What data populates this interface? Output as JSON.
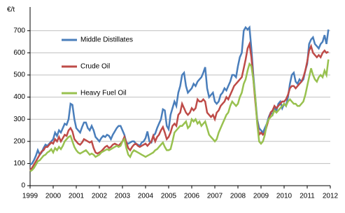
{
  "chart_data": {
    "type": "line",
    "y_label": "€/t",
    "x": [
      1999,
      1999.083,
      1999.167,
      1999.25,
      1999.333,
      1999.417,
      1999.5,
      1999.583,
      1999.667,
      1999.75,
      1999.833,
      1999.917,
      2000,
      2000.083,
      2000.167,
      2000.25,
      2000.333,
      2000.417,
      2000.5,
      2000.583,
      2000.667,
      2000.75,
      2000.833,
      2000.917,
      2001,
      2001.083,
      2001.167,
      2001.25,
      2001.333,
      2001.417,
      2001.5,
      2001.583,
      2001.667,
      2001.75,
      2001.833,
      2001.917,
      2002,
      2002.083,
      2002.167,
      2002.25,
      2002.333,
      2002.417,
      2002.5,
      2002.583,
      2002.667,
      2002.75,
      2002.833,
      2002.917,
      2003,
      2003.083,
      2003.167,
      2003.25,
      2003.333,
      2003.417,
      2003.5,
      2003.583,
      2003.667,
      2003.75,
      2003.833,
      2003.917,
      2004,
      2004.083,
      2004.167,
      2004.25,
      2004.333,
      2004.417,
      2004.5,
      2004.583,
      2004.667,
      2004.75,
      2004.833,
      2004.917,
      2005,
      2005.083,
      2005.167,
      2005.25,
      2005.333,
      2005.417,
      2005.5,
      2005.583,
      2005.667,
      2005.75,
      2005.833,
      2005.917,
      2006,
      2006.083,
      2006.167,
      2006.25,
      2006.333,
      2006.417,
      2006.5,
      2006.583,
      2006.667,
      2006.75,
      2006.833,
      2006.917,
      2007,
      2007.083,
      2007.167,
      2007.25,
      2007.333,
      2007.417,
      2007.5,
      2007.583,
      2007.667,
      2007.75,
      2007.833,
      2007.917,
      2008,
      2008.083,
      2008.167,
      2008.25,
      2008.333,
      2008.417,
      2008.5,
      2008.583,
      2008.667,
      2008.75,
      2008.833,
      2008.917,
      2009,
      2009.083,
      2009.167,
      2009.25,
      2009.333,
      2009.417,
      2009.5,
      2009.583,
      2009.667,
      2009.75,
      2009.833,
      2009.917,
      2010,
      2010.083,
      2010.167,
      2010.25,
      2010.333,
      2010.417,
      2010.5,
      2010.583,
      2010.667,
      2010.75,
      2010.833,
      2010.917,
      2011,
      2011.083,
      2011.167,
      2011.25,
      2011.333,
      2011.417,
      2011.5,
      2011.583,
      2011.667,
      2011.75,
      2011.833,
      2011.917
    ],
    "series": [
      {
        "name": "Middle Distillates",
        "color": "#4a7ebb",
        "values": [
          95,
          100,
          115,
          135,
          160,
          140,
          150,
          170,
          185,
          180,
          190,
          200,
          210,
          240,
          225,
          250,
          240,
          260,
          280,
          275,
          300,
          370,
          365,
          300,
          260,
          250,
          240,
          265,
          285,
          285,
          260,
          250,
          270,
          250,
          220,
          210,
          200,
          215,
          225,
          220,
          230,
          225,
          210,
          230,
          245,
          260,
          270,
          270,
          250,
          230,
          195,
          190,
          195,
          200,
          200,
          190,
          185,
          180,
          195,
          200,
          215,
          245,
          200,
          195,
          225,
          235,
          260,
          280,
          300,
          345,
          340,
          270,
          255,
          320,
          350,
          380,
          360,
          420,
          450,
          500,
          510,
          450,
          420,
          430,
          440,
          460,
          450,
          470,
          480,
          490,
          510,
          535,
          440,
          400,
          410,
          420,
          380,
          370,
          380,
          410,
          420,
          440,
          430,
          450,
          470,
          500,
          500,
          490,
          540,
          580,
          600,
          700,
          715,
          705,
          715,
          620,
          500,
          400,
          300,
          260,
          250,
          240,
          260,
          280,
          310,
          330,
          320,
          350,
          340,
          370,
          380,
          350,
          370,
          360,
          400,
          460,
          500,
          510,
          470,
          460,
          480,
          470,
          480,
          520,
          550,
          640,
          660,
          670,
          640,
          630,
          620,
          640,
          650,
          680,
          640,
          705
        ]
      },
      {
        "name": "Crude Oil",
        "color": "#be4b48",
        "values": [
          70,
          80,
          95,
          110,
          125,
          140,
          155,
          160,
          175,
          175,
          185,
          195,
          190,
          210,
          200,
          220,
          200,
          215,
          230,
          225,
          250,
          260,
          245,
          210,
          200,
          190,
          185,
          195,
          210,
          205,
          200,
          195,
          200,
          170,
          150,
          145,
          150,
          155,
          165,
          175,
          180,
          170,
          175,
          185,
          190,
          185,
          180,
          190,
          200,
          220,
          195,
          170,
          160,
          175,
          185,
          190,
          180,
          175,
          180,
          185,
          190,
          180,
          190,
          200,
          225,
          200,
          220,
          230,
          250,
          265,
          240,
          210,
          220,
          240,
          270,
          280,
          270,
          320,
          330,
          370,
          350,
          330,
          320,
          330,
          350,
          340,
          350,
          390,
          380,
          380,
          390,
          380,
          330,
          320,
          310,
          320,
          300,
          330,
          340,
          360,
          370,
          380,
          400,
          390,
          410,
          430,
          450,
          460,
          470,
          480,
          490,
          530,
          570,
          620,
          640,
          580,
          480,
          380,
          290,
          230,
          240,
          230,
          240,
          270,
          300,
          330,
          340,
          360,
          350,
          360,
          370,
          380,
          380,
          390,
          410,
          440,
          450,
          450,
          440,
          450,
          460,
          470,
          490,
          520,
          560,
          610,
          630,
          600,
          590,
          580,
          590,
          580,
          600,
          610,
          600,
          605
        ]
      },
      {
        "name": "Heavy Fuel Oil",
        "color": "#98c14f",
        "values": [
          65,
          70,
          80,
          95,
          110,
          115,
          125,
          135,
          140,
          150,
          155,
          165,
          150,
          170,
          160,
          175,
          165,
          180,
          200,
          210,
          220,
          225,
          200,
          175,
          160,
          150,
          145,
          150,
          155,
          160,
          150,
          140,
          145,
          140,
          130,
          135,
          140,
          150,
          155,
          160,
          165,
          160,
          165,
          170,
          175,
          180,
          175,
          180,
          200,
          210,
          170,
          140,
          130,
          150,
          160,
          155,
          150,
          145,
          140,
          135,
          130,
          135,
          140,
          145,
          150,
          160,
          165,
          175,
          185,
          195,
          175,
          160,
          160,
          165,
          200,
          240,
          250,
          260,
          270,
          270,
          280,
          290,
          260,
          270,
          300,
          290,
          300,
          280,
          290,
          270,
          280,
          290,
          260,
          230,
          220,
          210,
          200,
          210,
          240,
          260,
          280,
          300,
          320,
          330,
          360,
          380,
          370,
          360,
          370,
          400,
          420,
          460,
          480,
          520,
          550,
          540,
          480,
          400,
          280,
          200,
          190,
          200,
          230,
          280,
          300,
          310,
          320,
          340,
          330,
          340,
          350,
          360,
          370,
          360,
          380,
          390,
          380,
          370,
          370,
          360,
          360,
          370,
          380,
          410,
          450,
          490,
          530,
          500,
          480,
          470,
          490,
          500,
          490,
          520,
          500,
          570
        ]
      }
    ],
    "xlim": [
      1999,
      2012
    ],
    "xticks": [
      1999,
      2000,
      2001,
      2002,
      2003,
      2004,
      2005,
      2006,
      2007,
      2008,
      2009,
      2010,
      2011,
      2012
    ],
    "ylim": [
      0,
      750
    ],
    "yticks": [
      0,
      100,
      200,
      300,
      400,
      500,
      600,
      700
    ],
    "grid": true,
    "legend": "upper left"
  }
}
